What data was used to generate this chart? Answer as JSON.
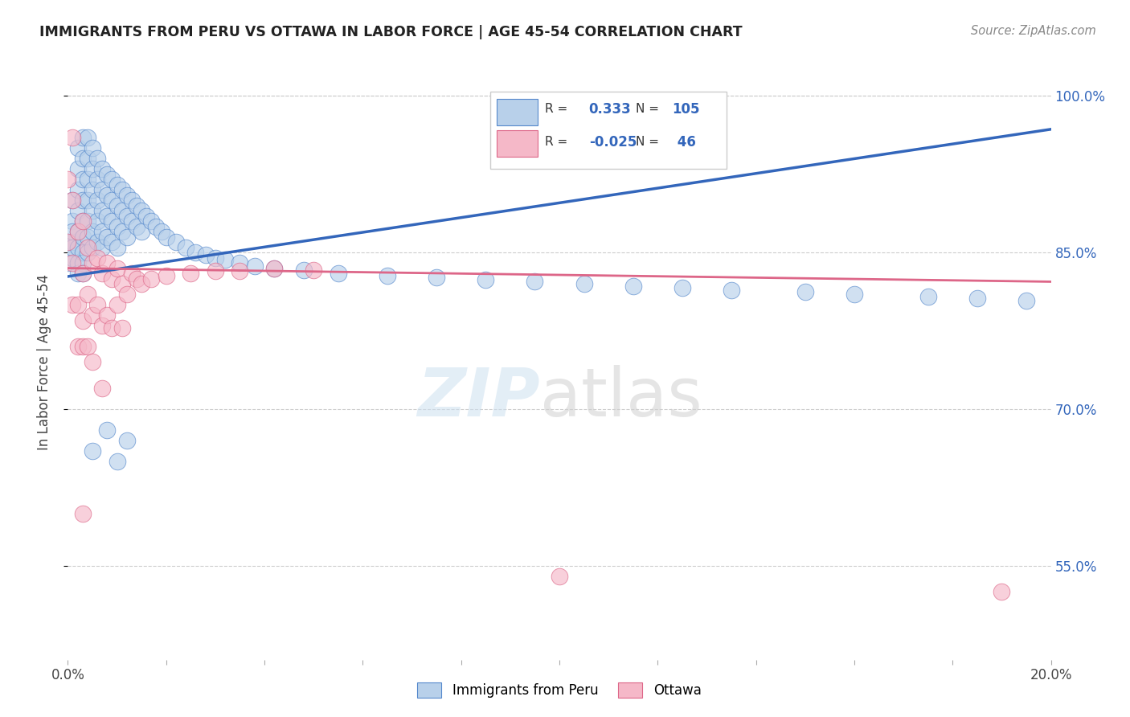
{
  "title": "IMMIGRANTS FROM PERU VS OTTAWA IN LABOR FORCE | AGE 45-54 CORRELATION CHART",
  "source": "Source: ZipAtlas.com",
  "ylabel": "In Labor Force | Age 45-54",
  "xlim": [
    0.0,
    0.2
  ],
  "ylim": [
    0.46,
    1.03
  ],
  "xtick_positions": [
    0.0,
    0.02,
    0.04,
    0.06,
    0.08,
    0.1,
    0.12,
    0.14,
    0.16,
    0.18,
    0.2
  ],
  "xtick_labels": [
    "0.0%",
    "",
    "",
    "",
    "",
    "",
    "",
    "",
    "",
    "",
    "20.0%"
  ],
  "ytick_positions": [
    0.55,
    0.7,
    0.85,
    1.0
  ],
  "ytick_labels": [
    "55.0%",
    "70.0%",
    "85.0%",
    "100.0%"
  ],
  "blue_fill": "#b8d0ea",
  "blue_edge": "#5588cc",
  "pink_fill": "#f5b8c8",
  "pink_edge": "#dd6688",
  "blue_line": "#3366bb",
  "pink_line": "#dd6688",
  "peru_line_x": [
    0.0,
    0.2
  ],
  "peru_line_y": [
    0.827,
    0.968
  ],
  "ottawa_line_x": [
    0.0,
    0.2
  ],
  "ottawa_line_y": [
    0.835,
    0.822
  ],
  "peru_x": [
    0.0,
    0.0,
    0.001,
    0.001,
    0.001,
    0.001,
    0.001,
    0.001,
    0.002,
    0.002,
    0.002,
    0.002,
    0.002,
    0.002,
    0.002,
    0.002,
    0.003,
    0.003,
    0.003,
    0.003,
    0.003,
    0.003,
    0.003,
    0.003,
    0.003,
    0.004,
    0.004,
    0.004,
    0.004,
    0.004,
    0.004,
    0.004,
    0.005,
    0.005,
    0.005,
    0.005,
    0.005,
    0.005,
    0.006,
    0.006,
    0.006,
    0.006,
    0.006,
    0.007,
    0.007,
    0.007,
    0.007,
    0.007,
    0.008,
    0.008,
    0.008,
    0.008,
    0.009,
    0.009,
    0.009,
    0.009,
    0.01,
    0.01,
    0.01,
    0.01,
    0.011,
    0.011,
    0.011,
    0.012,
    0.012,
    0.012,
    0.013,
    0.013,
    0.014,
    0.014,
    0.015,
    0.015,
    0.016,
    0.017,
    0.018,
    0.019,
    0.02,
    0.022,
    0.024,
    0.026,
    0.028,
    0.03,
    0.032,
    0.035,
    0.038,
    0.042,
    0.048,
    0.055,
    0.065,
    0.075,
    0.085,
    0.095,
    0.105,
    0.115,
    0.125,
    0.135,
    0.15,
    0.16,
    0.175,
    0.185,
    0.195,
    0.005,
    0.008,
    0.01,
    0.012
  ],
  "peru_y": [
    0.86,
    0.84,
    0.9,
    0.88,
    0.86,
    0.845,
    0.87,
    0.855,
    0.95,
    0.93,
    0.91,
    0.89,
    0.87,
    0.855,
    0.84,
    0.83,
    0.96,
    0.94,
    0.92,
    0.9,
    0.88,
    0.865,
    0.85,
    0.84,
    0.83,
    0.96,
    0.94,
    0.92,
    0.9,
    0.88,
    0.865,
    0.85,
    0.95,
    0.93,
    0.91,
    0.89,
    0.87,
    0.855,
    0.94,
    0.92,
    0.9,
    0.88,
    0.86,
    0.93,
    0.91,
    0.89,
    0.87,
    0.855,
    0.925,
    0.905,
    0.885,
    0.865,
    0.92,
    0.9,
    0.88,
    0.86,
    0.915,
    0.895,
    0.875,
    0.855,
    0.91,
    0.89,
    0.87,
    0.905,
    0.885,
    0.865,
    0.9,
    0.88,
    0.895,
    0.875,
    0.89,
    0.87,
    0.885,
    0.88,
    0.875,
    0.87,
    0.865,
    0.86,
    0.855,
    0.85,
    0.848,
    0.845,
    0.843,
    0.84,
    0.837,
    0.835,
    0.833,
    0.83,
    0.828,
    0.826,
    0.824,
    0.822,
    0.82,
    0.818,
    0.816,
    0.814,
    0.812,
    0.81,
    0.808,
    0.806,
    0.804,
    0.66,
    0.68,
    0.65,
    0.67
  ],
  "ottawa_x": [
    0.0,
    0.0,
    0.001,
    0.001,
    0.001,
    0.001,
    0.002,
    0.002,
    0.002,
    0.003,
    0.003,
    0.003,
    0.003,
    0.004,
    0.004,
    0.004,
    0.005,
    0.005,
    0.005,
    0.006,
    0.006,
    0.007,
    0.007,
    0.008,
    0.008,
    0.009,
    0.009,
    0.01,
    0.01,
    0.011,
    0.011,
    0.012,
    0.013,
    0.014,
    0.015,
    0.017,
    0.02,
    0.025,
    0.03,
    0.035,
    0.042,
    0.05,
    0.1,
    0.19,
    0.003,
    0.007
  ],
  "ottawa_y": [
    0.92,
    0.86,
    0.96,
    0.9,
    0.84,
    0.8,
    0.87,
    0.8,
    0.76,
    0.88,
    0.83,
    0.785,
    0.76,
    0.855,
    0.81,
    0.76,
    0.84,
    0.79,
    0.745,
    0.845,
    0.8,
    0.83,
    0.78,
    0.84,
    0.79,
    0.825,
    0.778,
    0.835,
    0.8,
    0.82,
    0.778,
    0.81,
    0.83,
    0.825,
    0.82,
    0.825,
    0.828,
    0.83,
    0.832,
    0.832,
    0.835,
    0.833,
    0.54,
    0.525,
    0.6,
    0.72
  ]
}
